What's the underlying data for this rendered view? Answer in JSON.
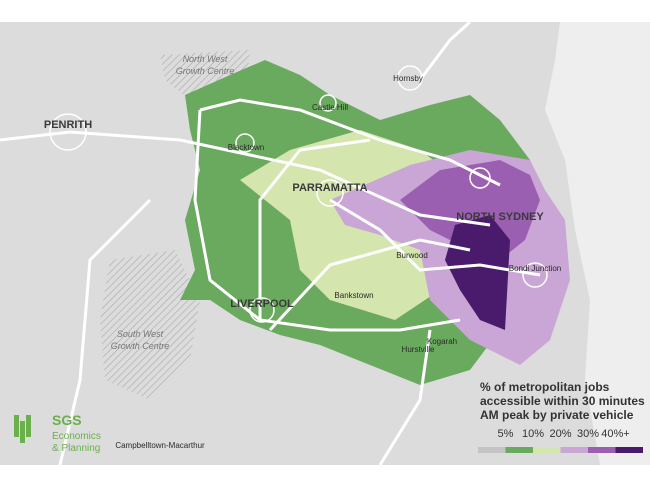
{
  "map": {
    "places": [
      {
        "lines": [
          "North West",
          "Growth Centre"
        ]
      },
      {
        "lines": [
          "Hornsby"
        ]
      },
      {
        "lines": [
          "Castle Hill"
        ]
      },
      {
        "lines": [
          "PENRITH"
        ]
      },
      {
        "lines": [
          "Blacktown"
        ]
      },
      {
        "lines": [
          "PARRAMATTA"
        ]
      },
      {
        "lines": [
          "NORTH SYDNEY"
        ]
      },
      {
        "lines": [
          "Burwood"
        ]
      },
      {
        "lines": [
          "Bondi Junction"
        ]
      },
      {
        "lines": [
          "LIVERPOOL"
        ]
      },
      {
        "lines": [
          "Bankstown"
        ]
      },
      {
        "lines": [
          "South West",
          "Growth Centre"
        ]
      },
      {
        "lines": [
          "Kogarah"
        ]
      },
      {
        "lines": [
          "Hurstville"
        ]
      },
      {
        "lines": [
          "Campbelltown-Macarthur"
        ]
      }
    ],
    "legend": {
      "title": [
        "% of metropolitan jobs",
        "accessible within 30 minutes",
        "AM peak by private vehicle"
      ],
      "labels": [
        "5%",
        "10%",
        "20%",
        "30%",
        "40%+"
      ],
      "colors": [
        "#c4c4c4",
        "#6aaa5f",
        "#d4e5ae",
        "#c9a6d6",
        "#9b5fb1",
        "#4a1a6c"
      ]
    },
    "logo": {
      "name": "SGS",
      "lines": [
        "Economics",
        "& Planning"
      ]
    }
  }
}
